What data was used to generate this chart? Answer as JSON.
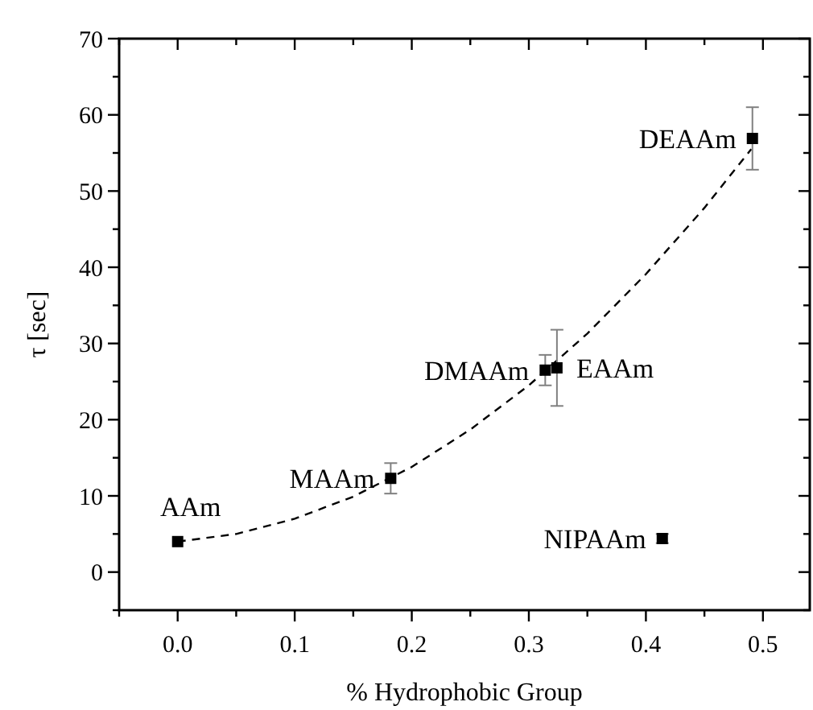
{
  "chart_data": {
    "type": "scatter",
    "xlabel": "% Hydrophobic Group",
    "ylabel": "τ [sec]",
    "xlim": [
      -0.05,
      0.54
    ],
    "xticks": [
      {
        "value": -0.05,
        "label": null
      },
      {
        "value": 0,
        "label": "0.0"
      },
      {
        "value": 0.05,
        "label": null
      },
      0.1,
      {
        "value": 0.15,
        "label": null
      },
      0.2,
      {
        "value": 0.25,
        "label": null
      },
      0.3,
      {
        "value": 0.35,
        "label": null
      },
      0.4,
      {
        "value": 0.45,
        "label": null
      },
      0.5
    ],
    "ylim": [
      -5,
      70
    ],
    "yticks": [
      {
        "value": -5,
        "label": null
      },
      0,
      {
        "value": 5,
        "label": null
      },
      10,
      {
        "value": 15,
        "label": null
      },
      20,
      {
        "value": 25,
        "label": null
      },
      30,
      {
        "value": 35,
        "label": null
      },
      40,
      {
        "value": 45,
        "label": null
      },
      50,
      {
        "value": 55,
        "label": null
      },
      60,
      {
        "value": 65,
        "label": null
      },
      70
    ],
    "grid": false,
    "series": [
      {
        "type": "line",
        "color": "#000000",
        "line_style": "dashed",
        "marker": "none",
        "x": [
          0,
          0.05,
          0.1,
          0.15,
          0.2,
          0.25,
          0.3,
          0.35,
          0.4,
          0.45,
          0.49
        ],
        "values": [
          4,
          5.0,
          7.0,
          9.9,
          13.8,
          18.7,
          24.5,
          31.3,
          39.1,
          47.8,
          55.5
        ]
      },
      {
        "color": "#000000",
        "marker": "square",
        "x": [
          0,
          0.182,
          0.314,
          0.324,
          0.491,
          0.414
        ],
        "values": [
          4,
          12.3,
          26.5,
          26.8,
          56.9,
          4.4
        ],
        "errors": [
          null,
          2,
          2,
          5,
          4.1,
          0.6
        ]
      }
    ],
    "annotations": [
      {
        "text": "AAm",
        "x": 0,
        "y": 4
      },
      {
        "text": "MAAm",
        "x": 0.182,
        "y": 12.3
      },
      {
        "text": "DMAAm",
        "x": 0.314,
        "y": 26.5
      },
      {
        "text": "EAAm",
        "x": 0.324,
        "y": 26.8
      },
      {
        "text": "NIPAAm",
        "x": 0.414,
        "y": 4.4
      },
      {
        "text": "DEAAm",
        "x": 0.491,
        "y": 56.9
      }
    ]
  }
}
